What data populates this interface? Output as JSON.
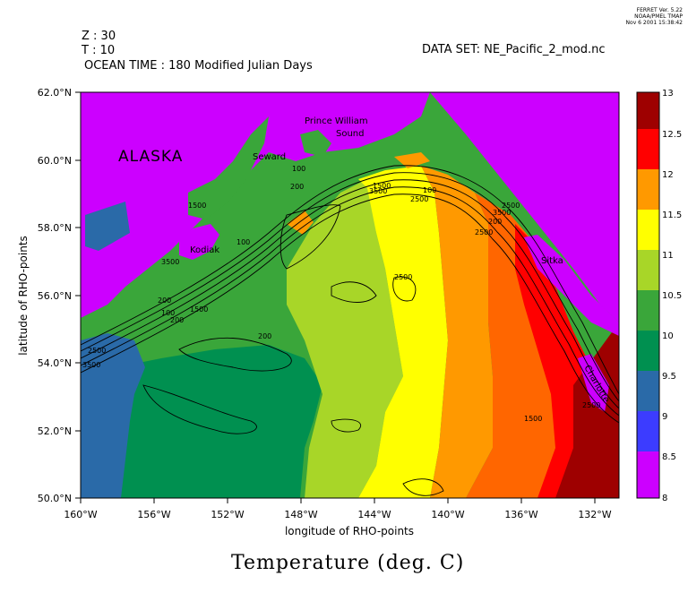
{
  "header": {
    "software_line1": "FERRET Ver. 5.22",
    "software_line2": "NOAA/PMEL TMAP",
    "software_line3": "Nov  6 2001 15:38:42",
    "z_label": "Z : 30",
    "t_label": "T : 10",
    "ocean_time": "OCEAN TIME : 180 Modified Julian Days",
    "dataset": "DATA SET: NE_Pacific_2_mod.nc"
  },
  "title": "Temperature (deg. C)",
  "colors": {
    "land": "#cc00ff",
    "contour": "#000000",
    "levels": [
      "#cc00ff",
      "#3c3cff",
      "#2a6aa8",
      "#009050",
      "#3aa63a",
      "#a8d628",
      "#ffff00",
      "#ff9900",
      "#ff6600",
      "#ff0000",
      "#9e0000"
    ]
  },
  "chart_data": {
    "type": "heatmap",
    "title": "Temperature (deg. C)",
    "xlabel": "longitude of RHO-points",
    "ylabel": "latitude of RHO-points",
    "xlim": [
      -160,
      -130.6
    ],
    "ylim": [
      50,
      62
    ],
    "x_ticks": [
      "160°W",
      "156°W",
      "152°W",
      "148°W",
      "144°W",
      "140°W",
      "136°W",
      "132°W"
    ],
    "y_ticks": [
      "50.0°N",
      "52.0°N",
      "54.0°N",
      "56.0°N",
      "58.0°N",
      "60.0°N",
      "62.0°N"
    ],
    "colorbar": {
      "levels": [
        8,
        8.5,
        9,
        9.5,
        10,
        10.5,
        11,
        11.5,
        12,
        12.5,
        13
      ],
      "labels": [
        "8",
        "8.5",
        "9",
        "9.5",
        "10",
        "10.5",
        "11",
        "11.5",
        "12",
        "12.5",
        "13"
      ]
    },
    "place_labels": [
      "ALASKA",
      "Prince William",
      "Sound",
      "Seward",
      "Kodiak",
      "Sitka",
      "Charlotte"
    ],
    "contour_labels": [
      "100",
      "200",
      "1500",
      "2500",
      "3500",
      "100",
      "200",
      "3500",
      "2500",
      "200",
      "100",
      "1500",
      "3500",
      "200",
      "100",
      "200",
      "1500",
      "2500",
      "3500",
      "1500",
      "2500",
      "2500",
      "2500"
    ]
  }
}
